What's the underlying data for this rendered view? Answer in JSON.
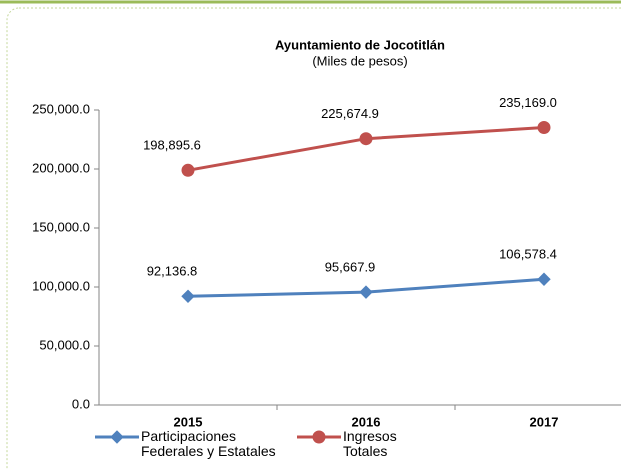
{
  "chart_data": {
    "type": "line",
    "title": "Ayuntamiento de Jocotitlán",
    "subtitle": "(Miles de pesos)",
    "categories": [
      "2015",
      "2016",
      "2017"
    ],
    "series": [
      {
        "name": "Participaciones Federales y Estatales",
        "color": "#4f81bd",
        "marker": "diamond",
        "values": [
          92136.8,
          95667.9,
          106578.4
        ],
        "value_labels": [
          "92,136.8",
          "95,667.9",
          "106,578.4"
        ]
      },
      {
        "name": "Ingresos Totales",
        "color": "#c0504d",
        "marker": "circle",
        "values": [
          198895.6,
          225674.9,
          235169.0
        ],
        "value_labels": [
          "198,895.6",
          "225,674.9",
          "235,169.0"
        ]
      }
    ],
    "ylim": [
      0,
      250000
    ],
    "yticks": [
      {
        "value": 0,
        "label": "0.0"
      },
      {
        "value": 50000,
        "label": "50,000.0"
      },
      {
        "value": 100000,
        "label": "100,000.0"
      },
      {
        "value": 150000,
        "label": "150,000.0"
      },
      {
        "value": 200000,
        "label": "200,000.0"
      },
      {
        "value": 250000,
        "label": "250,000.0"
      }
    ],
    "legend": "bottom"
  }
}
